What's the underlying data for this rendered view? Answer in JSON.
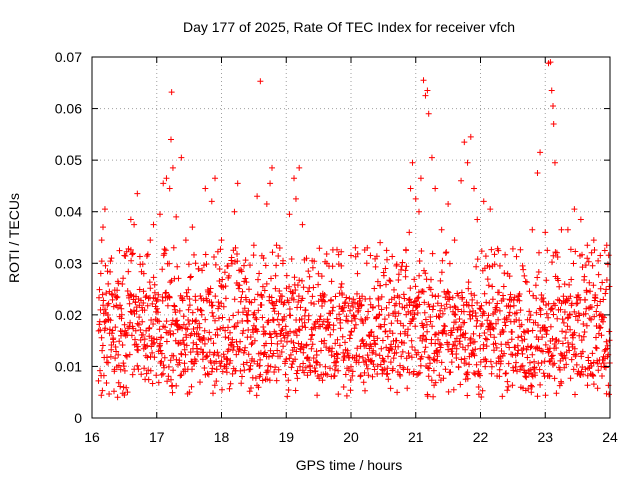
{
  "chart_data": {
    "type": "scatter",
    "title": "Day 177 of 2025, Rate Of TEC Index for receiver vfch",
    "xlabel": "GPS time / hours",
    "ylabel": "ROTI / TECUs",
    "xlim": [
      16,
      24
    ],
    "ylim": [
      0,
      0.07
    ],
    "xticks": [
      16,
      17,
      18,
      19,
      20,
      21,
      22,
      23,
      24
    ],
    "xtick_labels": [
      "16",
      "17",
      "18",
      "19",
      "20",
      "21",
      "22",
      "23",
      "24"
    ],
    "yticks": [
      0,
      0.01,
      0.02,
      0.03,
      0.04,
      0.05,
      0.06,
      0.07
    ],
    "ytick_labels": [
      "0",
      "0.01",
      "0.02",
      "0.03",
      "0.04",
      "0.05",
      "0.06",
      "0.07"
    ],
    "grid": true,
    "marker": "+",
    "series": [
      {
        "name": "ROTI",
        "color": "#ff0000",
        "points": [
          [
            16.15,
            0.0345
          ],
          [
            16.17,
            0.037
          ],
          [
            16.2,
            0.0405
          ],
          [
            16.25,
            0.026
          ],
          [
            16.3,
            0.031
          ],
          [
            16.4,
            0.0265
          ],
          [
            16.5,
            0.0315
          ],
          [
            16.6,
            0.0385
          ],
          [
            16.65,
            0.0375
          ],
          [
            16.7,
            0.0435
          ],
          [
            16.8,
            0.028
          ],
          [
            16.9,
            0.0345
          ],
          [
            16.95,
            0.0375
          ],
          [
            17.05,
            0.0395
          ],
          [
            17.1,
            0.0455
          ],
          [
            17.15,
            0.0465
          ],
          [
            17.2,
            0.0445
          ],
          [
            17.22,
            0.054
          ],
          [
            17.23,
            0.0632
          ],
          [
            17.25,
            0.0485
          ],
          [
            17.3,
            0.039
          ],
          [
            17.38,
            0.0505
          ],
          [
            17.45,
            0.0345
          ],
          [
            17.55,
            0.037
          ],
          [
            17.6,
            0.03
          ],
          [
            17.75,
            0.0445
          ],
          [
            17.85,
            0.042
          ],
          [
            17.9,
            0.0465
          ],
          [
            18.0,
            0.0345
          ],
          [
            18.1,
            0.0295
          ],
          [
            18.2,
            0.04
          ],
          [
            18.25,
            0.0455
          ],
          [
            18.35,
            0.0265
          ],
          [
            18.5,
            0.0335
          ],
          [
            18.55,
            0.043
          ],
          [
            18.6,
            0.0653
          ],
          [
            18.65,
            0.031
          ],
          [
            18.7,
            0.0415
          ],
          [
            18.75,
            0.0455
          ],
          [
            18.78,
            0.0485
          ],
          [
            18.85,
            0.0335
          ],
          [
            18.95,
            0.0305
          ],
          [
            19.05,
            0.0395
          ],
          [
            19.12,
            0.0465
          ],
          [
            19.15,
            0.0425
          ],
          [
            19.2,
            0.0485
          ],
          [
            19.25,
            0.0375
          ],
          [
            19.4,
            0.0305
          ],
          [
            19.55,
            0.0275
          ],
          [
            19.7,
            0.0265
          ],
          [
            19.85,
            0.0295
          ],
          [
            20.0,
            0.0315
          ],
          [
            20.1,
            0.028
          ],
          [
            20.3,
            0.0315
          ],
          [
            20.45,
            0.034
          ],
          [
            20.55,
            0.0325
          ],
          [
            20.7,
            0.0295
          ],
          [
            20.85,
            0.0325
          ],
          [
            20.9,
            0.036
          ],
          [
            20.92,
            0.0445
          ],
          [
            20.95,
            0.0495
          ],
          [
            21.0,
            0.0425
          ],
          [
            21.05,
            0.04
          ],
          [
            21.08,
            0.0465
          ],
          [
            21.12,
            0.0655
          ],
          [
            21.15,
            0.0625
          ],
          [
            21.18,
            0.0635
          ],
          [
            21.2,
            0.059
          ],
          [
            21.25,
            0.0505
          ],
          [
            21.3,
            0.0445
          ],
          [
            21.4,
            0.0365
          ],
          [
            21.5,
            0.0415
          ],
          [
            21.6,
            0.0345
          ],
          [
            21.7,
            0.046
          ],
          [
            21.75,
            0.0535
          ],
          [
            21.8,
            0.0495
          ],
          [
            21.85,
            0.0545
          ],
          [
            21.9,
            0.0445
          ],
          [
            21.95,
            0.0385
          ],
          [
            22.05,
            0.042
          ],
          [
            22.15,
            0.0405
          ],
          [
            22.3,
            0.0295
          ],
          [
            22.45,
            0.0275
          ],
          [
            22.65,
            0.0295
          ],
          [
            22.8,
            0.0365
          ],
          [
            22.88,
            0.0475
          ],
          [
            22.92,
            0.0515
          ],
          [
            23.0,
            0.036
          ],
          [
            23.05,
            0.0688
          ],
          [
            23.08,
            0.069
          ],
          [
            23.1,
            0.0635
          ],
          [
            23.12,
            0.0605
          ],
          [
            23.13,
            0.057
          ],
          [
            23.15,
            0.0495
          ],
          [
            23.25,
            0.0365
          ],
          [
            23.35,
            0.0365
          ],
          [
            23.45,
            0.0405
          ],
          [
            23.55,
            0.0385
          ],
          [
            23.65,
            0.0335
          ],
          [
            23.75,
            0.0345
          ],
          [
            23.85,
            0.0315
          ],
          [
            23.95,
            0.0335
          ],
          [
            23.99,
            0.0255
          ]
        ],
        "base_band": {
          "description_free": true,
          "x_start": 16.1,
          "x_end": 24.0,
          "x_step": 0.004,
          "y_min": 0.004,
          "y_typical_low": 0.008,
          "y_typical_high": 0.024,
          "y_high": 0.033
        }
      }
    ]
  }
}
